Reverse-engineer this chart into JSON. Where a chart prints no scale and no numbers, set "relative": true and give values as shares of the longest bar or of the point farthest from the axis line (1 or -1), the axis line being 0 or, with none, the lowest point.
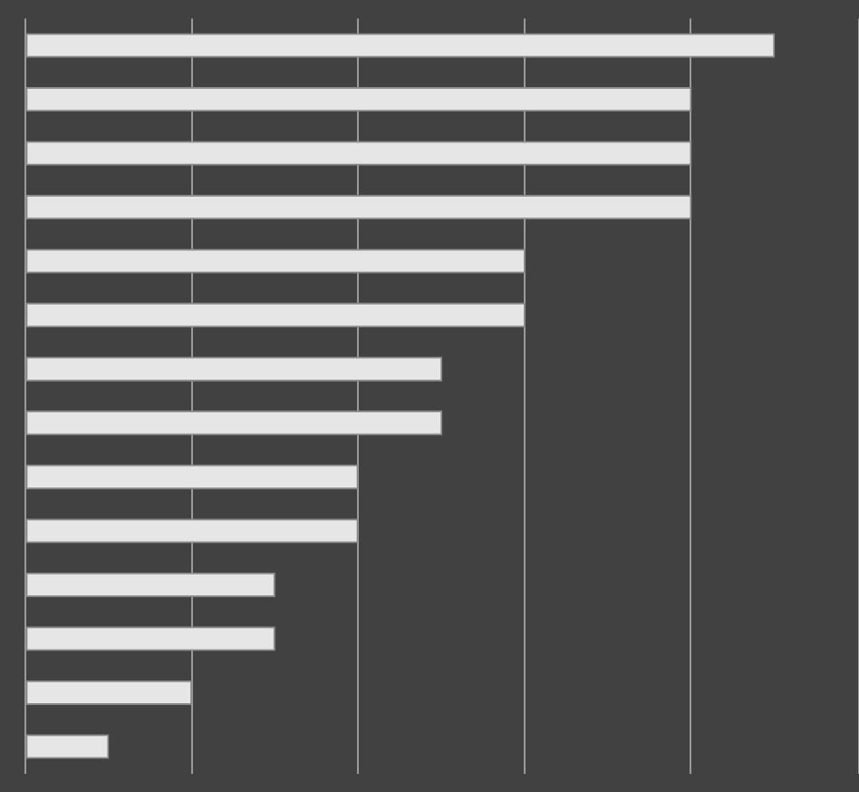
{
  "chart_data": {
    "type": "bar",
    "orientation": "horizontal",
    "relative": true,
    "grid": "x",
    "categories": [
      null,
      null,
      null,
      null,
      null,
      null,
      null,
      null,
      null,
      null,
      null,
      null,
      null,
      null
    ],
    "color": "#e6e6e6",
    "values": [
      1,
      0.889,
      0.889,
      0.889,
      0.667,
      0.667,
      0.556,
      0.556,
      0.444,
      0.444,
      0.333,
      0.333,
      0.222,
      0.111
    ]
  }
}
